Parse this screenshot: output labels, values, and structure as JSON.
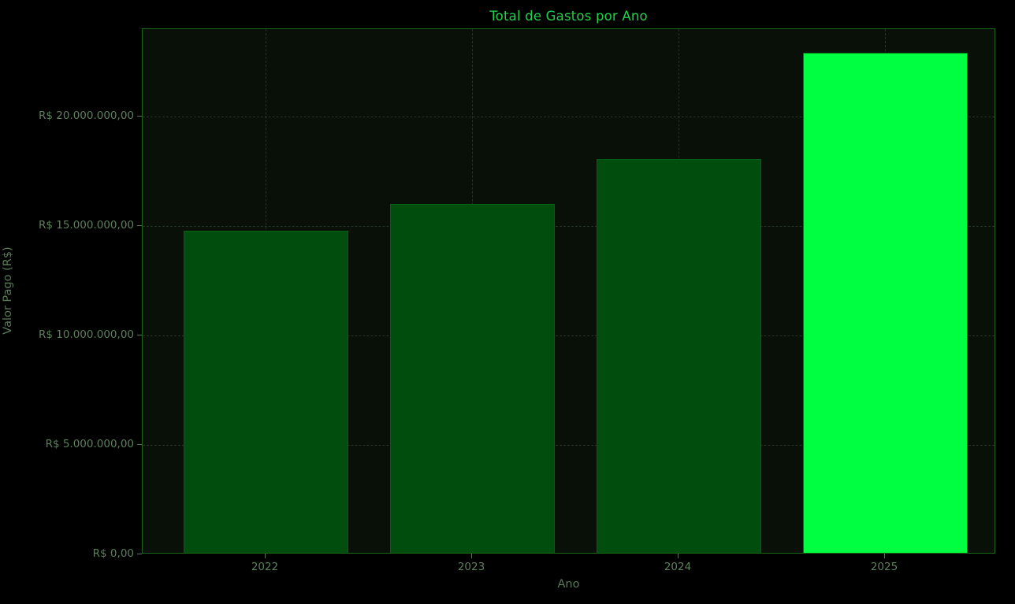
{
  "chart_data": {
    "type": "bar",
    "title": "Total de Gastos por Ano",
    "xlabel": "Ano",
    "ylabel": "Valor Pago (R$)",
    "categories": [
      "2022",
      "2023",
      "2024",
      "2025"
    ],
    "values": [
      14700000,
      15950000,
      18000000,
      22850000
    ],
    "currency_format": "R$ pt-BR",
    "yticks": [
      {
        "value": 0,
        "label": "R$ 0,00"
      },
      {
        "value": 5000000,
        "label": "R$ 5.000.000,00"
      },
      {
        "value": 10000000,
        "label": "R$ 10.000.000,00"
      },
      {
        "value": 15000000,
        "label": "R$ 15.000.000,00"
      },
      {
        "value": 20000000,
        "label": "R$ 20.000.000,00"
      }
    ],
    "ylim": [
      0,
      24000000
    ],
    "grid": {
      "horizontal": true,
      "vertical": true,
      "style": "dashed"
    },
    "legend": "none",
    "bar_colors": [
      "#004d0e",
      "#004d0e",
      "#004d0e",
      "#00ff41"
    ],
    "highlighted_category": "2025",
    "colors": {
      "figure_background": "#000000",
      "axes_background": "#081008",
      "spine": "#1b651b",
      "title": "#1ed24a",
      "tick_label": "#5d805d",
      "axis_label": "#587a58",
      "bar_dark": "#004d0e",
      "bar_highlight": "#00ff41"
    }
  }
}
